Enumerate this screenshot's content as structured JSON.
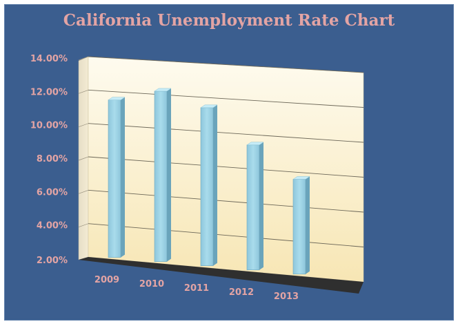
{
  "chart_data": {
    "type": "bar",
    "title": "California Unemployment Rate Chart",
    "categories": [
      "2009",
      "2010",
      "2011",
      "2012",
      "2013"
    ],
    "values": [
      11.4,
      12.1,
      11.3,
      9.3,
      7.5
    ],
    "y_ticks": [
      "2.00%",
      "4.00%",
      "6.00%",
      "8.00%",
      "10.00%",
      "12.00%",
      "14.00%"
    ],
    "ylim": [
      2,
      14
    ],
    "xlabel": "",
    "ylabel": "",
    "grid": true,
    "legend": "none",
    "colors": {
      "background": "#3b5e8f",
      "wall": "#fdf3d2",
      "floor": "#2f2f2f",
      "bar": "#9fd3e6",
      "text": "#e3a4a4"
    }
  }
}
